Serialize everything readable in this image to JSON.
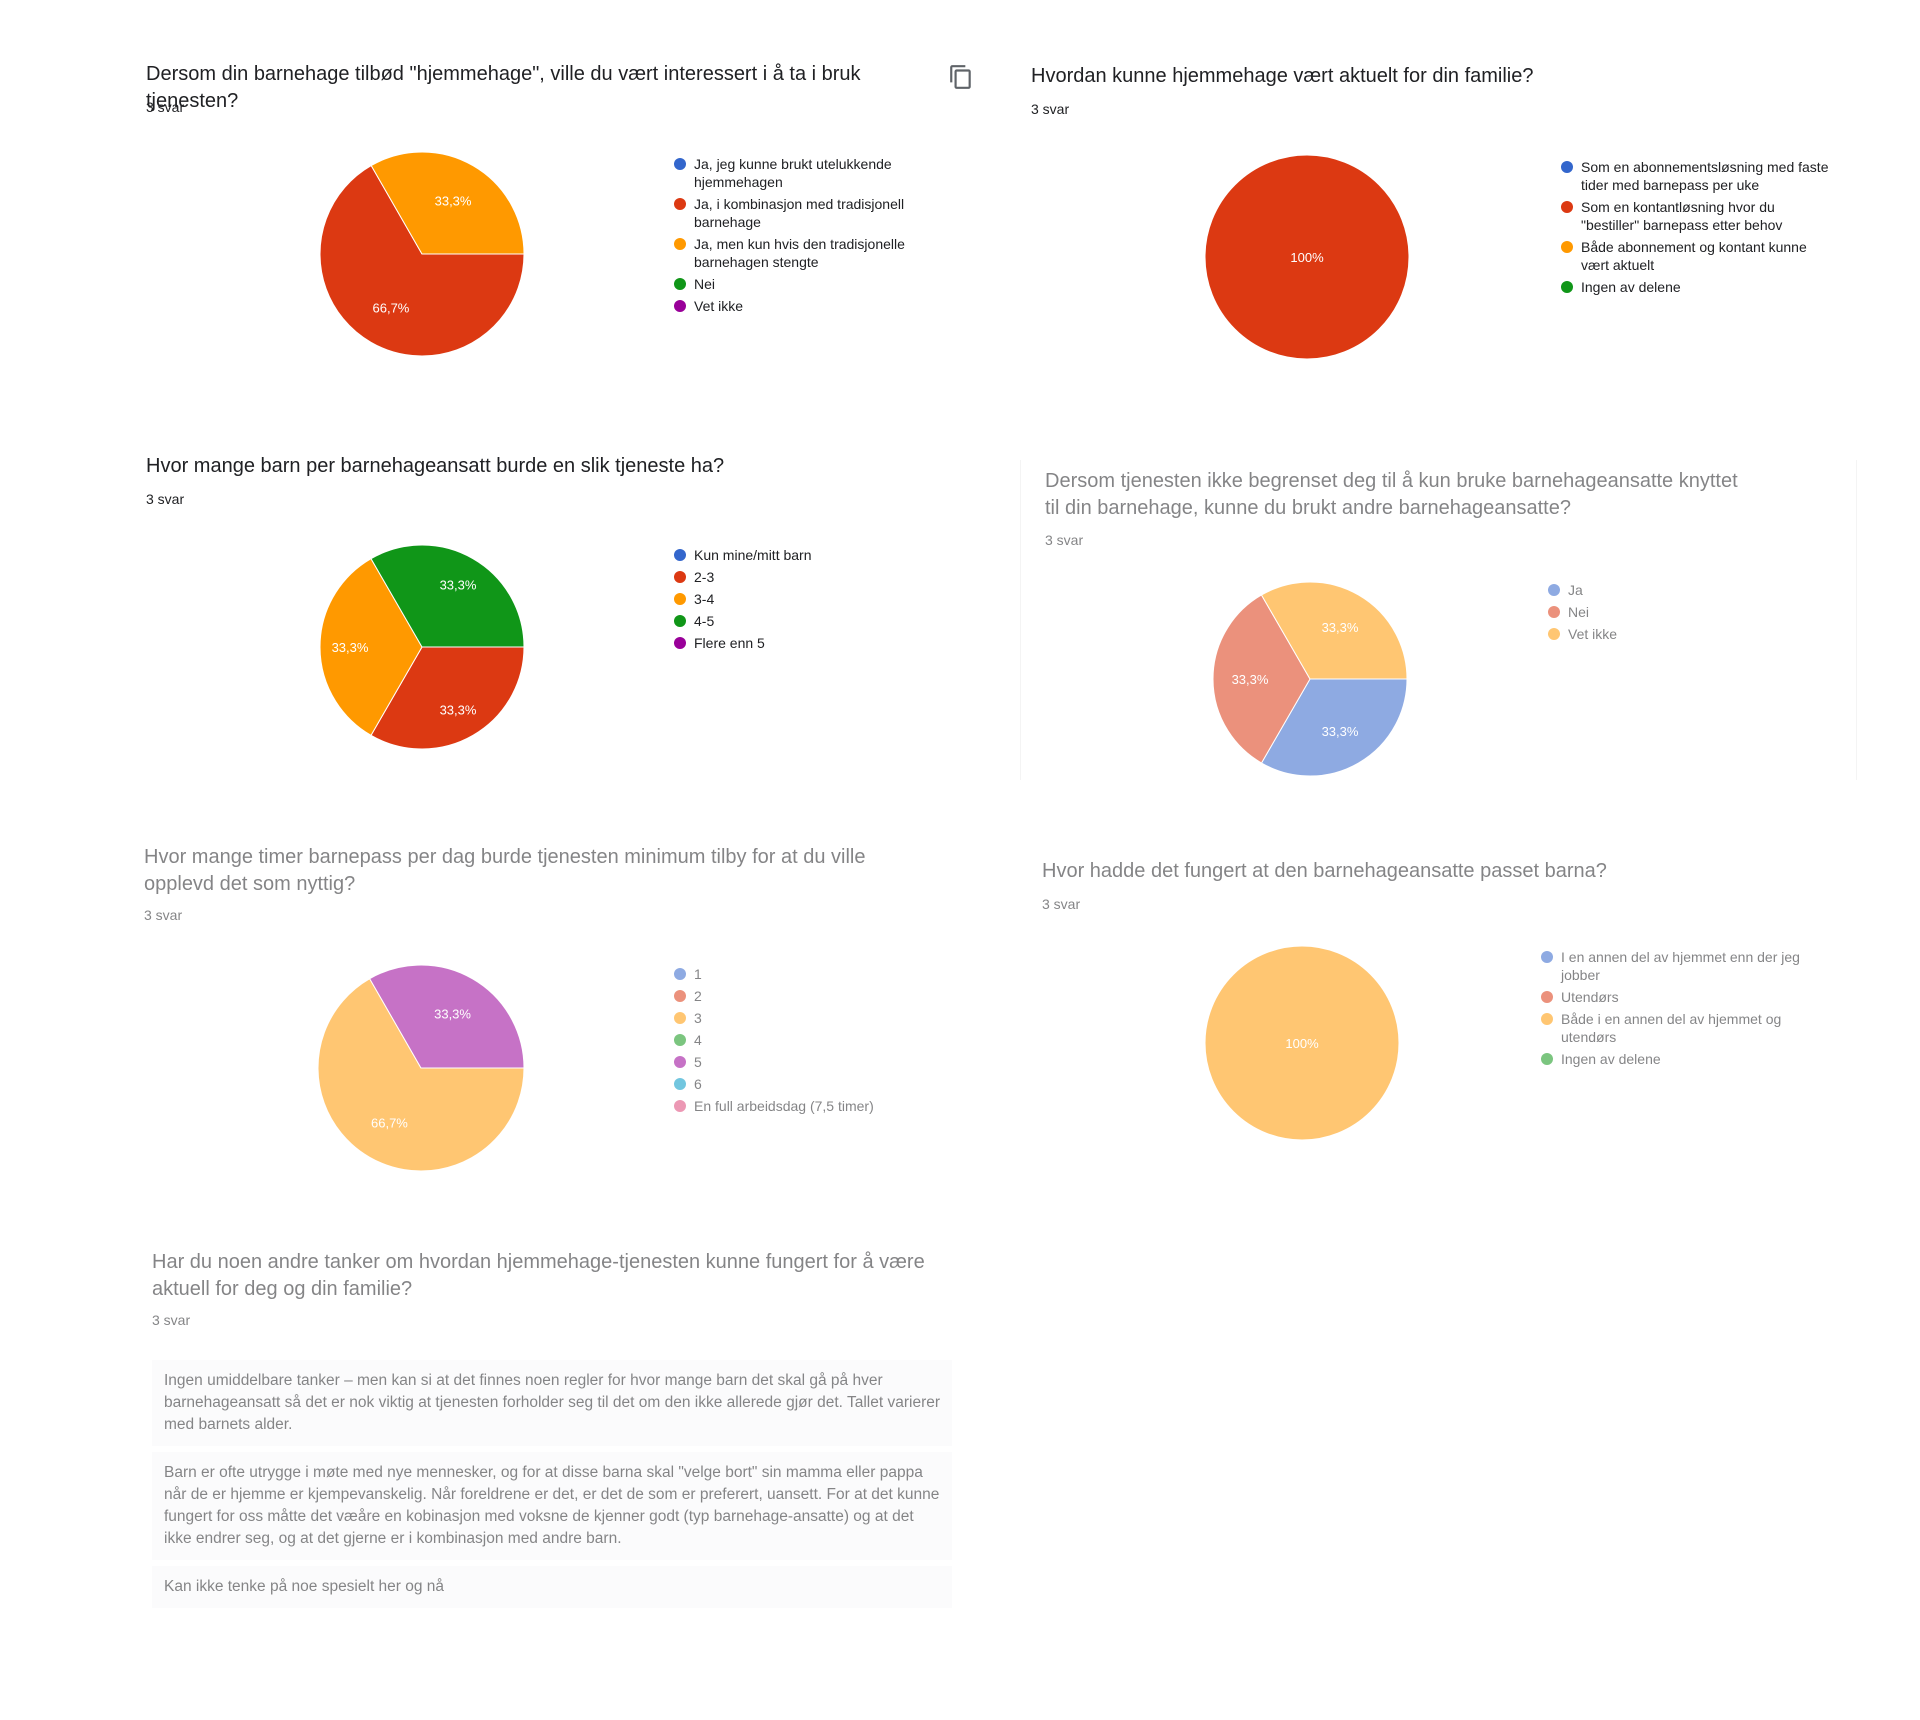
{
  "colors": {
    "blue": "#3366cc",
    "red": "#dc3912",
    "orange": "#ff9900",
    "green": "#109618",
    "purple": "#990099",
    "light_blue": "#aab9e9",
    "light_red": "#f0a696",
    "light_orange": "#ffd08c",
    "light_green": "#8fd49a",
    "light_purple": "#cc7fcc",
    "light_cyan": "#66c6e0",
    "light_pink": "#ee99bb"
  },
  "copy_icon": "copy-icon",
  "charts": [
    {
      "title": "Dersom din barnehage tilbød \"hjemmehage\", ville du vært interessert i å ta i bruk tjenesten?",
      "count": "3 svar",
      "chart_data": {
        "type": "pie",
        "legend_position": "right",
        "slices": [
          {
            "label": "Ja, jeg kunne brukt utelukkende hjemmehagen",
            "value": 0,
            "color": "#3366cc",
            "pct_label": ""
          },
          {
            "label": "Ja, i kombinasjon med tradisjonell barnehage",
            "value": 66.7,
            "color": "#dc3912",
            "pct_label": "66,7%"
          },
          {
            "label": "Ja, men kun hvis den tradisjonelle barnehagen stengte",
            "value": 33.3,
            "color": "#ff9900",
            "pct_label": "33,3%"
          },
          {
            "label": "Nei",
            "value": 0,
            "color": "#109618",
            "pct_label": ""
          },
          {
            "label": "Vet ikke",
            "value": 0,
            "color": "#990099",
            "pct_label": ""
          }
        ]
      }
    },
    {
      "title": "Hvordan kunne hjemmehage vært aktuelt for din familie?",
      "count": "3 svar",
      "chart_data": {
        "type": "pie",
        "legend_position": "right",
        "slices": [
          {
            "label": "Som en abonnementsløsning med faste tider med barnepass per uke",
            "value": 0,
            "color": "#3366cc",
            "pct_label": ""
          },
          {
            "label": "Som en kontantløsning hvor du \"bestiller\" barnepass etter behov",
            "value": 100,
            "color": "#dc3912",
            "pct_label": "100%"
          },
          {
            "label": "Både abonnement og kontant kunne vært aktuelt",
            "value": 0,
            "color": "#ff9900",
            "pct_label": ""
          },
          {
            "label": "Ingen av delene",
            "value": 0,
            "color": "#109618",
            "pct_label": ""
          }
        ]
      }
    },
    {
      "title": "Hvor mange barn per barnehageansatt burde en slik tjeneste ha?",
      "count": "3 svar",
      "chart_data": {
        "type": "pie",
        "legend_position": "right",
        "slices": [
          {
            "label": "Kun mine/mitt barn",
            "value": 0,
            "color": "#3366cc",
            "pct_label": ""
          },
          {
            "label": "2-3",
            "value": 33.3,
            "color": "#dc3912",
            "pct_label": "33,3%"
          },
          {
            "label": "3-4",
            "value": 33.3,
            "color": "#ff9900",
            "pct_label": "33,3%"
          },
          {
            "label": "4-5",
            "value": 33.3,
            "color": "#109618",
            "pct_label": "33,3%"
          },
          {
            "label": "Flere enn 5",
            "value": 0,
            "color": "#990099",
            "pct_label": ""
          }
        ]
      }
    },
    {
      "title": "Dersom tjenesten ikke begrenset deg til å kun bruke barnehageansatte knyttet til din barnehage, kunne du brukt andre barnehageansatte?",
      "count": "3 svar",
      "chart_data": {
        "type": "pie",
        "legend_position": "right",
        "slices": [
          {
            "label": "Ja",
            "value": 33.3,
            "color": "#3366cc",
            "pct_label": "33,3%"
          },
          {
            "label": "Nei",
            "value": 33.3,
            "color": "#dc3912",
            "pct_label": "33,3%"
          },
          {
            "label": "Vet ikke",
            "value": 33.3,
            "color": "#ff9900",
            "pct_label": "33,3%"
          }
        ]
      }
    },
    {
      "title": "Hvor mange timer barnepass per dag burde tjenesten minimum tilby for at du ville opplevd det som nyttig?",
      "count": "3 svar",
      "chart_data": {
        "type": "pie",
        "legend_position": "right",
        "slices": [
          {
            "label": "1",
            "value": 0,
            "color": "#3366cc",
            "pct_label": ""
          },
          {
            "label": "2",
            "value": 0,
            "color": "#dc3912",
            "pct_label": ""
          },
          {
            "label": "3",
            "value": 66.7,
            "color": "#ff9900",
            "pct_label": "66,7%"
          },
          {
            "label": "4",
            "value": 0,
            "color": "#109618",
            "pct_label": ""
          },
          {
            "label": "5",
            "value": 33.3,
            "color": "#990099",
            "pct_label": "33,3%"
          },
          {
            "label": "6",
            "value": 0,
            "color": "#0099c6",
            "pct_label": ""
          },
          {
            "label": "En full arbeidsdag (7,5 timer)",
            "value": 0,
            "color": "#dd4477",
            "pct_label": ""
          }
        ]
      }
    },
    {
      "title": "Hvor hadde det fungert at den barnehageansatte passet barna?",
      "count": "3 svar",
      "chart_data": {
        "type": "pie",
        "legend_position": "right",
        "slices": [
          {
            "label": "I en annen del av hjemmet enn der jeg jobber",
            "value": 0,
            "color": "#3366cc",
            "pct_label": ""
          },
          {
            "label": "Utendørs",
            "value": 0,
            "color": "#dc3912",
            "pct_label": ""
          },
          {
            "label": "Både i en annen del av hjemmet og utendørs",
            "value": 100,
            "color": "#ff9900",
            "pct_label": "100%"
          },
          {
            "label": "Ingen av delene",
            "value": 0,
            "color": "#109618",
            "pct_label": ""
          }
        ]
      }
    }
  ],
  "text_question": {
    "title": "Har du noen andre tanker om hvordan hjemmehage-tjenesten kunne fungert for å være aktuell for deg og din familie?",
    "count": "3 svar",
    "responses": [
      "Ingen umiddelbare tanker – men kan si at det finnes noen regler for hvor mange barn det skal gå på hver barnehageansatt så det er nok viktig at tjenesten forholder seg til det om den ikke allerede gjør det. Tallet varierer med barnets alder.",
      "Barn er ofte utrygge i møte med nye mennesker, og for at disse barna skal \"velge bort\" sin mamma eller pappa når de er hjemme er kjempevanskelig. Når foreldrene er det, er det de som er preferert, uansett. For at det kunne fungert for oss måtte det væåre en kobinasjon med voksne de kjenner godt (typ barnehage-ansatte) og at det ikke endrer seg, og at det gjerne er i kombinasjon med andre barn.",
      "Kan ikke tenke på noe spesielt her og nå"
    ]
  }
}
